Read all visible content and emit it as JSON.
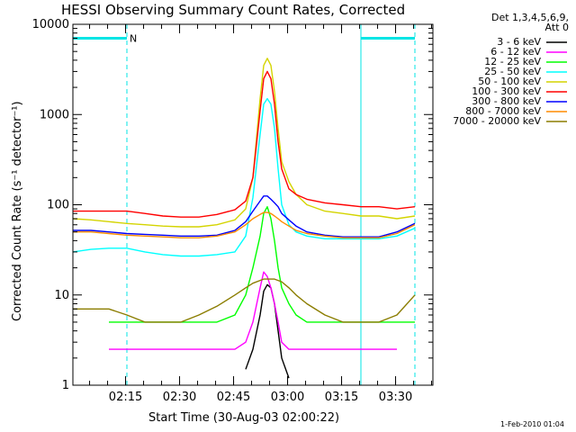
{
  "chart_data": {
    "type": "line",
    "title": "HESSI Observing Summary Count Rates, Corrected",
    "xlabel": "Start Time (30-Aug-03 02:00:22)",
    "ylabel": "Corrected Count Rate (s⁻¹ detector⁻¹)",
    "yscale": "log",
    "ylim": [
      1,
      10000
    ],
    "xlim_minutes": [
      0,
      100
    ],
    "x_ticks": [
      "02:15",
      "02:30",
      "02:45",
      "03:00",
      "03:15",
      "03:30"
    ],
    "y_ticks": [
      "1",
      "10",
      "100",
      "1000",
      "10000"
    ],
    "legend_header": [
      "Det 1,3,4,5,6,9,",
      "Att 0"
    ],
    "legend_position": "right",
    "markers": {
      "night_label": "N",
      "vertical_lines_minutes": [
        0,
        15,
        80,
        95
      ]
    },
    "x_minutes": [
      0,
      5,
      10,
      15,
      20,
      25,
      30,
      35,
      40,
      45,
      48,
      50,
      52,
      53,
      54,
      55,
      56,
      57,
      58,
      60,
      62,
      65,
      70,
      75,
      80,
      85,
      90,
      95
    ],
    "series": [
      {
        "name": "3 - 6 keV",
        "color": "#000000",
        "values": [
          null,
          null,
          null,
          null,
          null,
          null,
          null,
          null,
          null,
          null,
          1.5,
          2.5,
          6,
          11,
          13,
          12,
          8,
          4,
          2,
          1.2,
          null,
          null,
          null,
          null,
          null,
          null,
          null,
          null
        ]
      },
      {
        "name": "6 - 12 keV",
        "color": "#ff00ff",
        "values": [
          null,
          null,
          2.5,
          2.5,
          2.5,
          2.5,
          2.5,
          2.5,
          2.5,
          2.5,
          3,
          5,
          12,
          18,
          16,
          12,
          8,
          5,
          3,
          2.5,
          2.5,
          2.5,
          2.5,
          2.5,
          2.5,
          2.5,
          2.5,
          null
        ]
      },
      {
        "name": "12 - 25 keV",
        "color": "#00ff00",
        "values": [
          null,
          null,
          5,
          5,
          5,
          5,
          5,
          5,
          5,
          6,
          10,
          20,
          45,
          80,
          95,
          70,
          40,
          20,
          12,
          8,
          6,
          5,
          5,
          5,
          5,
          5,
          5,
          5
        ]
      },
      {
        "name": "25 - 50 keV",
        "color": "#00ffff",
        "values": [
          30,
          32,
          33,
          33,
          30,
          28,
          27,
          27,
          28,
          30,
          45,
          120,
          600,
          1300,
          1500,
          1300,
          700,
          250,
          100,
          60,
          50,
          45,
          42,
          42,
          42,
          42,
          45,
          55
        ]
      },
      {
        "name": "50 - 100 keV",
        "color": "#d4d400",
        "values": [
          70,
          68,
          65,
          62,
          60,
          58,
          57,
          57,
          60,
          68,
          90,
          200,
          1500,
          3500,
          4200,
          3500,
          1800,
          700,
          300,
          180,
          130,
          100,
          85,
          80,
          75,
          75,
          70,
          75
        ]
      },
      {
        "name": "100 - 300 keV",
        "color": "#ff0000",
        "values": [
          85,
          85,
          85,
          85,
          80,
          75,
          73,
          73,
          78,
          88,
          110,
          200,
          1100,
          2500,
          3000,
          2500,
          1300,
          500,
          250,
          150,
          130,
          115,
          105,
          100,
          95,
          95,
          90,
          95
        ]
      },
      {
        "name": "300 - 800 keV",
        "color": "#0000ff",
        "values": [
          52,
          52,
          50,
          48,
          47,
          46,
          45,
          45,
          46,
          52,
          65,
          85,
          110,
          125,
          125,
          115,
          105,
          95,
          80,
          68,
          58,
          50,
          46,
          44,
          44,
          44,
          50,
          62
        ]
      },
      {
        "name": "800 - 7000 keV",
        "color": "#ff8c00",
        "values": [
          50,
          50,
          48,
          46,
          45,
          44,
          43,
          43,
          45,
          50,
          60,
          70,
          78,
          82,
          82,
          80,
          75,
          70,
          65,
          58,
          52,
          48,
          45,
          43,
          43,
          43,
          48,
          60
        ]
      },
      {
        "name": "7000 - 20000 keV",
        "color": "#8b7d00",
        "values": [
          7,
          7,
          7,
          6,
          5,
          5,
          5,
          6,
          7.5,
          10,
          12,
          13.5,
          14.5,
          15,
          15,
          15,
          15,
          14.5,
          14,
          12,
          10,
          8,
          6,
          5,
          5,
          5,
          6,
          10
        ]
      }
    ]
  },
  "footer": {
    "date": "1-Feb-2010 01:04"
  }
}
